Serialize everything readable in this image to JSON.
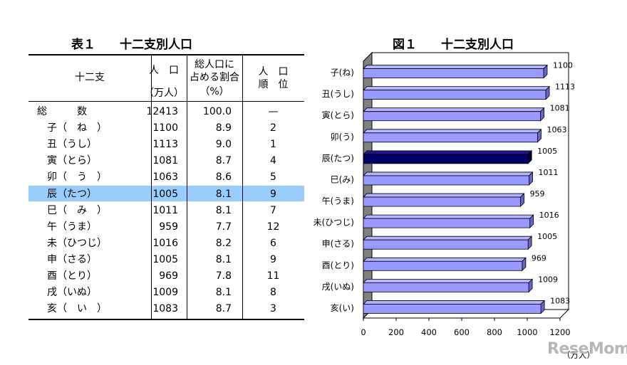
{
  "table": {
    "title": "表１　　十二支別人口",
    "headers": {
      "sign": "十二支",
      "pop_line1": "人　口",
      "pop_line2": "（万人）",
      "share_line1": "総人口に",
      "share_line2": "占める割合",
      "share_line3": "（%）",
      "rank_line1": "人　口",
      "rank_line2": "順　位"
    },
    "rows": [
      {
        "label": "総　　　数",
        "pop": "12413",
        "share": "100.0",
        "rank": "—"
      },
      {
        "label": "子（　ね　）",
        "pop": "1100",
        "share": "8.9",
        "rank": "2"
      },
      {
        "label": "丑（うし）",
        "pop": "1113",
        "share": "9.0",
        "rank": "1"
      },
      {
        "label": "寅（とら）",
        "pop": "1081",
        "share": "8.7",
        "rank": "4"
      },
      {
        "label": "卯（　う　）",
        "pop": "1063",
        "share": "8.6",
        "rank": "5"
      },
      {
        "label": "辰（たつ）",
        "pop": "1005",
        "share": "8.1",
        "rank": "9",
        "highlight": true
      },
      {
        "label": "巳（　み　）",
        "pop": "1011",
        "share": "8.1",
        "rank": "7"
      },
      {
        "label": "午（うま）",
        "pop": "959",
        "share": "7.7",
        "rank": "12"
      },
      {
        "label": "未（ひつじ）",
        "pop": "1016",
        "share": "8.2",
        "rank": "6"
      },
      {
        "label": "申（さる）",
        "pop": "1005",
        "share": "8.1",
        "rank": "9"
      },
      {
        "label": "酉（とり）",
        "pop": "969",
        "share": "7.8",
        "rank": "11"
      },
      {
        "label": "戌（いぬ）",
        "pop": "1009",
        "share": "8.1",
        "rank": "8"
      },
      {
        "label": "亥（　い　）",
        "pop": "1083",
        "share": "8.7",
        "rank": "3"
      }
    ]
  },
  "chart_data": {
    "type": "bar",
    "orientation": "horizontal",
    "title": "図１　　十二支別人口",
    "categories": [
      "子(ね)",
      "丑(うし)",
      "寅(とら)",
      "卯(う)",
      "辰(たつ)",
      "巳(み)",
      "午(うま)",
      "未(ひつじ)",
      "申(さる)",
      "酉(とり)",
      "戌(いぬ)",
      "亥(い)"
    ],
    "values": [
      1100,
      1113,
      1081,
      1063,
      1005,
      1011,
      959,
      1016,
      1005,
      969,
      1009,
      1083
    ],
    "highlight_index": 4,
    "xlim": [
      0,
      1200
    ],
    "xticks": [
      "0",
      "200",
      "400",
      "600",
      "800",
      "1000",
      "1200"
    ],
    "xunit": "（万人）",
    "colors": {
      "bar": "#9999ff",
      "bar_highlight": "#000066",
      "wall": "#808080",
      "edge": "#000000"
    }
  },
  "watermark": "ReseMom"
}
